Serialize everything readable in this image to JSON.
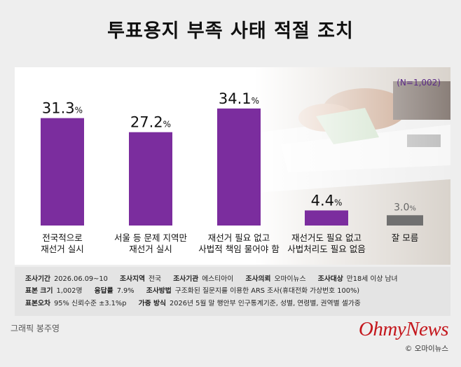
{
  "title": "투표용지 부족 사태 적절 조치",
  "sample_size_label": "(N=1,002)",
  "chart_data": {
    "type": "bar",
    "categories": [
      "전국적으로\n재선거 실시",
      "서울 등 문제 지역만\n재선거 실시",
      "재선거 필요 없고\n사법적 책임 물어야 함",
      "재선거도 필요 없고\n사법처리도 필요 없음",
      "잘 모름"
    ],
    "values": [
      31.3,
      27.2,
      34.1,
      4.4,
      3.0
    ],
    "value_labels": [
      "31.3",
      "27.2",
      "34.1",
      "4.4",
      "3.0"
    ],
    "unit": "%",
    "colors": [
      "#7b2d9e",
      "#7b2d9e",
      "#7b2d9e",
      "#7b2d9e",
      "#707070"
    ],
    "ylim": [
      0,
      40
    ]
  },
  "survey": {
    "period_label": "조사기간",
    "period": "2026.06.09~10",
    "region_label": "조사지역",
    "region": "전국",
    "agency_label": "조사기관",
    "agency": "에스티아이",
    "client_label": "조사의뢰",
    "client": "오마이뉴스",
    "target_label": "조사대상",
    "target": "만18세 이상 남녀",
    "sample_label": "표본 크기",
    "sample": "1,002명",
    "response_label": "응답률",
    "response": "7.9%",
    "method_label": "조사방법",
    "method": "구조화된 질문지를 이용한 ARS 조사(휴대전화 가상번호 100%)",
    "error_label": "표본오차",
    "error": "95% 신뢰수준 ±3.1%p",
    "weight_label": "가중 방식",
    "weight": "2026년 5월 말 행안부 인구통계기준, 성별, 연령별, 권역별 셀가중"
  },
  "credit": "그래픽 봉주영",
  "logo": "OhmyNews",
  "copyright": "© 오마이뉴스"
}
